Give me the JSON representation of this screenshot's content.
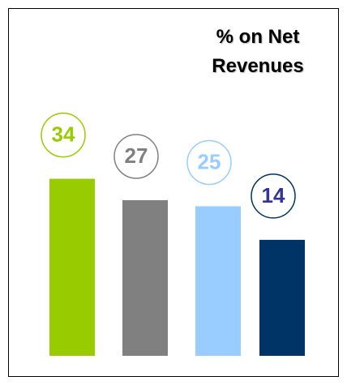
{
  "chart_data": {
    "type": "bar",
    "title": "% on Net Revenues",
    "categories": [
      null,
      null,
      null,
      null
    ],
    "values": [
      34,
      27,
      25,
      14
    ],
    "colors": [
      "#99cc00",
      "#808080",
      "#99ccff",
      "#003366"
    ],
    "label_colors": [
      "#99cc00",
      "#808080",
      "#99ccff",
      "#333399"
    ],
    "ylim": [
      -24,
      40
    ]
  }
}
